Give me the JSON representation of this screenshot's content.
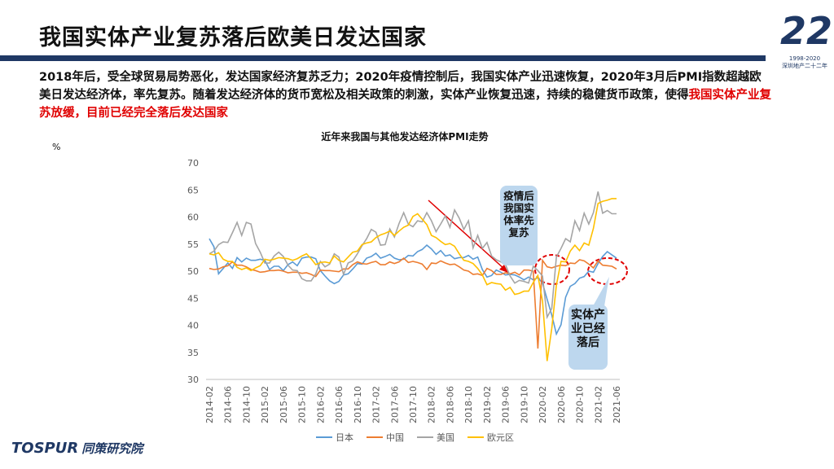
{
  "header": {
    "title": "我国实体产业复苏落后欧美日发达国家",
    "paragraph": "2018年后，受全球贸易局势恶化，发达国家经济复苏乏力；2020年疫情控制后，我国实体产业迅速恢复，2020年3月后PMI指数超越欧美日发达经济体，率先复苏。随着发达经济体的货币宽松及相关政策的刺激，实体产业恢复迅速，持续的稳健货币政策，使得",
    "highlight": "我国实体产业复苏放缓，目前已经完全落后发达国家"
  },
  "badge": {
    "number": "22",
    "years": "1998-2020",
    "caption": "深圳地产二十二年"
  },
  "footer": {
    "logo": "TOSPUR",
    "logo_sub": "同策研究院"
  },
  "chart_data": {
    "type": "line",
    "title": "近年来我国与其他发达经济体PMI走势",
    "y_label": "%",
    "categories": [
      "2014-02",
      null,
      null,
      null,
      "2014-06",
      null,
      null,
      null,
      "2014-10",
      null,
      null,
      null,
      "2015-02",
      null,
      null,
      null,
      "2015-06",
      null,
      null,
      null,
      "2015-10",
      null,
      null,
      null,
      "2016-02",
      null,
      null,
      null,
      "2016-06",
      null,
      null,
      null,
      "2016-10",
      null,
      null,
      null,
      "2017-02",
      null,
      null,
      null,
      "2017-06",
      null,
      null,
      null,
      "2017-10",
      null,
      null,
      null,
      "2018-02",
      null,
      null,
      null,
      "2018-06",
      null,
      null,
      null,
      "2018-10",
      null,
      null,
      null,
      "2019-02",
      null,
      null,
      null,
      "2019-06",
      null,
      null,
      null,
      "2019-10",
      null,
      null,
      null,
      "2020-02",
      null,
      null,
      null,
      "2020-06",
      null,
      null,
      null,
      "2020-10",
      null,
      null,
      null,
      "2021-02",
      null,
      null,
      null,
      "2021-06"
    ],
    "series": [
      {
        "name": "日本",
        "color": "#5b9bd5",
        "values": [
          56,
          54.5,
          49.5,
          50.5,
          51.5,
          50.5,
          52.5,
          51.7,
          52.4,
          52,
          52,
          52.2,
          52,
          50.3,
          50.9,
          50.9,
          50.1,
          51.2,
          51.7,
          51,
          52.4,
          52.6,
          52.6,
          52.3,
          50.1,
          49.1,
          48.2,
          47.7,
          48.1,
          49.3,
          49.5,
          50.4,
          51.4,
          51.3,
          52.4,
          52.7,
          53.3,
          52.4,
          52.7,
          53.1,
          52.4,
          52.1,
          52.2,
          52.9,
          52.8,
          53.6,
          54,
          54.8,
          54.1,
          53.1,
          53.8,
          52.8,
          53,
          52.3,
          52.5,
          52.5,
          52.9,
          52.2,
          52.6,
          50.3,
          48.9,
          49.2,
          50.2,
          49.8,
          49.3,
          49.4,
          49.3,
          48.9,
          48.4,
          48.9,
          48.4,
          48.8,
          47.8,
          44.8,
          41.9,
          38.4,
          40.1,
          45.2,
          47.2,
          47.7,
          48.7,
          49,
          50,
          49.8,
          51.4,
          52.7,
          53.6,
          53,
          52.4
        ]
      },
      {
        "name": "中国",
        "color": "#ed7d31",
        "values": [
          50.5,
          50.3,
          50.4,
          50.8,
          51,
          51.7,
          51.1,
          51.1,
          50.8,
          50.3,
          50.1,
          49.8,
          49.9,
          50.1,
          50.1,
          50.2,
          50,
          49.7,
          49.8,
          49.8,
          49.6,
          49.7,
          49.4,
          49,
          50.2,
          50.1,
          50.1,
          50,
          49.9,
          50.4,
          50.4,
          51.2,
          51.7,
          51.4,
          51.3,
          51.6,
          51.8,
          51.2,
          51.2,
          51.7,
          51.4,
          51.7,
          52.4,
          51.6,
          51.8,
          51.6,
          51.3,
          50.3,
          51.5,
          51.4,
          51.9,
          51.5,
          51.2,
          51.3,
          50.8,
          50.2,
          50,
          49.4,
          49.5,
          49.2,
          50.5,
          50.1,
          49.4,
          49.4,
          49.7,
          49.5,
          49.8,
          49.3,
          50.2,
          50.2,
          50,
          35.7,
          52,
          50.8,
          50.6,
          50.9,
          51.1,
          51,
          51.5,
          51.4,
          52.1,
          51.9,
          51.3,
          50.6,
          51.9,
          51.1,
          51,
          50.9,
          50.4
        ]
      },
      {
        "name": "美国",
        "color": "#a5a5a5",
        "values": [
          53.2,
          53.7,
          54.9,
          55.4,
          55.3,
          57.1,
          59,
          56.6,
          59,
          58.7,
          55.1,
          53.5,
          51.5,
          51.5,
          52.8,
          53.5,
          52.7,
          51.1,
          50.2,
          50.1,
          48.6,
          48.2,
          48.2,
          49.5,
          51.8,
          50.8,
          51.3,
          53.2,
          52.6,
          49.4,
          51.5,
          51.9,
          53.2,
          54.7,
          56,
          57.7,
          57.2,
          54.8,
          54.9,
          57.8,
          56.3,
          58.8,
          60.8,
          58.7,
          58.2,
          59.3,
          59.1,
          60.8,
          59.3,
          57.3,
          58.7,
          60.2,
          58.1,
          61.3,
          59.8,
          57.7,
          59.3,
          54.3,
          56.6,
          54.2,
          55.3,
          52.8,
          52.1,
          51.7,
          51.2,
          49.1,
          47.8,
          48.3,
          48.1,
          47.8,
          50.9,
          50.1,
          49.1,
          41.5,
          43.1,
          52.6,
          54.2,
          56,
          55.4,
          59.3,
          57.5,
          60.7,
          58.7,
          60.8,
          64.7,
          60.7,
          61.2,
          60.6,
          60.6
        ]
      },
      {
        "name": "欧元区",
        "color": "#ffc000",
        "values": [
          53.2,
          53,
          53.4,
          52.2,
          51.8,
          51.8,
          50.7,
          50.3,
          50.6,
          50.1,
          50.6,
          51,
          52.2,
          52,
          52.2,
          52.5,
          52.4,
          52.3,
          52,
          52.3,
          52.8,
          53.2,
          52.3,
          51.2,
          51.6,
          51.7,
          51.5,
          52.8,
          52,
          51.7,
          52.6,
          53.5,
          53.7,
          54.9,
          55.2,
          55.4,
          56.2,
          56.7,
          57,
          57.4,
          56.6,
          57.4,
          58.1,
          58.5,
          60.1,
          60.6,
          59.6,
          58.6,
          56.6,
          56.2,
          55.5,
          54.9,
          55.1,
          54.6,
          53.2,
          52,
          51.8,
          51.4,
          50.5,
          49.3,
          47.5,
          47.9,
          47.7,
          47.6,
          46.5,
          47,
          45.7,
          45.9,
          46.3,
          46.3,
          47.9,
          49.2,
          44.5,
          33.4,
          39.4,
          47.4,
          51.8,
          51.7,
          53.7,
          54.8,
          53.8,
          55.2,
          54.8,
          57.9,
          62.5,
          62.9,
          63.1,
          63.4,
          63.4
        ]
      }
    ],
    "ylim": [
      30,
      70
    ],
    "yticks": [
      30,
      35,
      40,
      45,
      50,
      55,
      60,
      65,
      70
    ],
    "grid": false,
    "legend": "bottom",
    "annotations": [
      "疫情后我国实体率先复苏",
      "实体产业已经落后"
    ]
  }
}
